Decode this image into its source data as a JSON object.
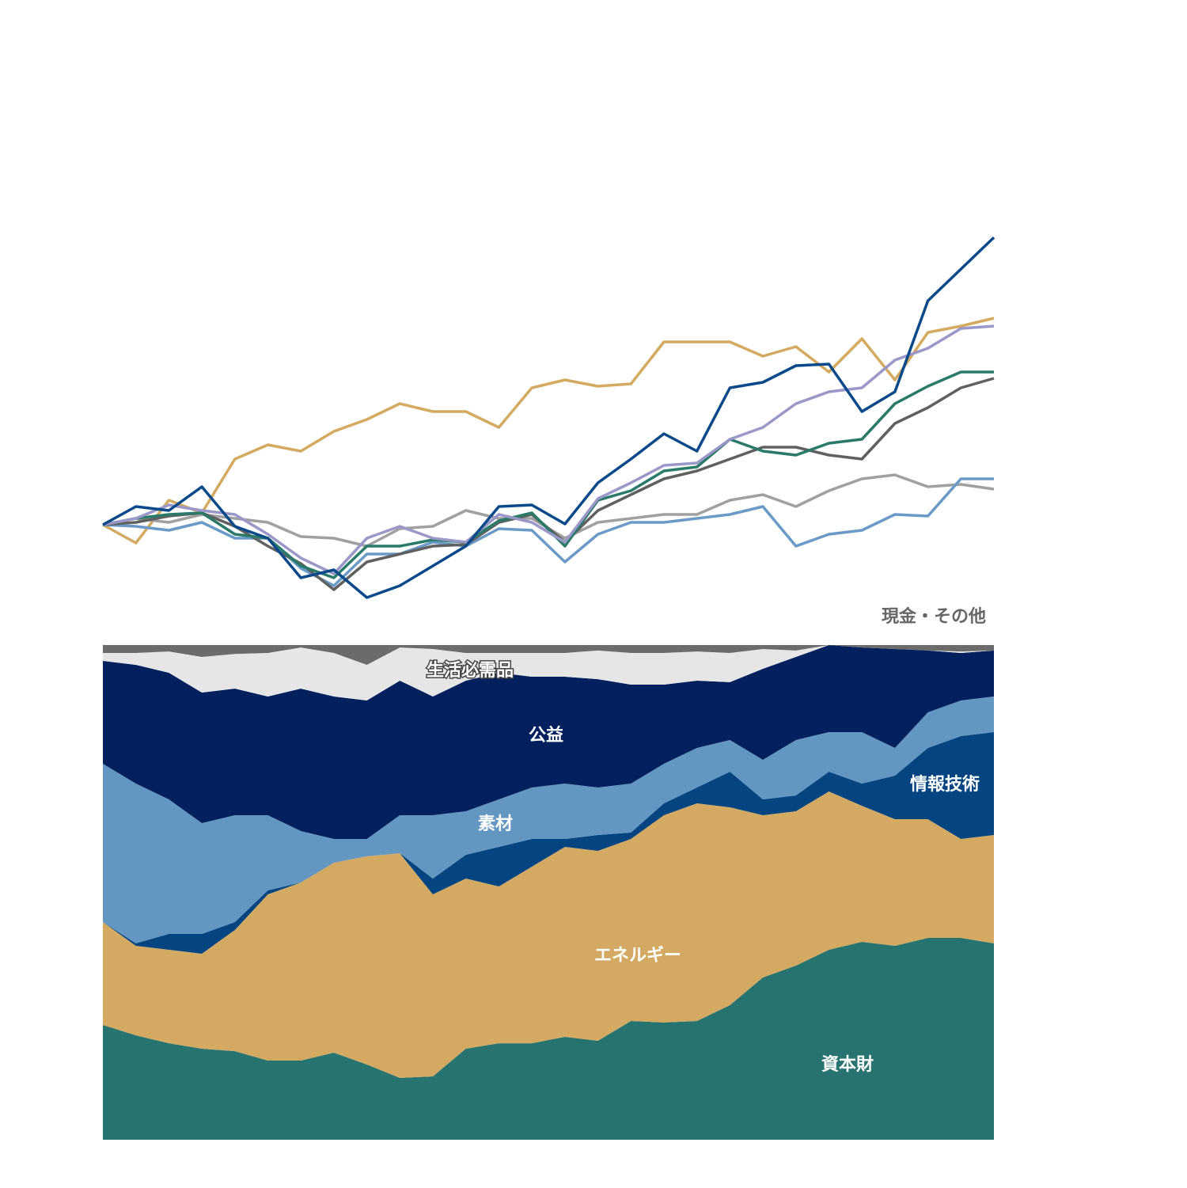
{
  "chart_data": [
    {
      "type": "line",
      "ylim": [
        -25,
        85
      ],
      "series": [
        {
          "color": "#d4aa60",
          "values": [
            0,
            -4.6,
            6.2,
            3,
            16.6,
            20.2,
            18.6,
            23.6,
            26.6,
            30.6,
            28.6,
            28.6,
            24.6,
            34.6,
            36.6,
            35,
            35.6,
            46.2,
            46.2,
            46.2,
            42.6,
            45,
            38.6,
            47,
            36.6,
            48.6,
            50.2,
            52.2
          ]
        },
        {
          "color": "#a0a0a0",
          "values": [
            0,
            1.6,
            0.6,
            2.6,
            1.6,
            0.6,
            -3,
            -3.4,
            -5.4,
            -1,
            -0.4,
            3.6,
            1.6,
            1.6,
            -3.4,
            0.6,
            1.6,
            2.6,
            2.6,
            6.2,
            7.6,
            4.6,
            8.6,
            11.6,
            12.6,
            9.6,
            10.2,
            9
          ]
        },
        {
          "color": "#6a9ac8",
          "values": [
            0,
            -0.4,
            -1.4,
            0.6,
            -3.4,
            -3.4,
            -11,
            -15.4,
            -7.4,
            -7.4,
            -4.4,
            -5.4,
            -1,
            -1.4,
            -9.4,
            -2.4,
            0.6,
            0.6,
            1.6,
            2.6,
            4.6,
            -5.4,
            -2.4,
            -1.4,
            2.6,
            2.2,
            11.6,
            11.6
          ]
        },
        {
          "color": "#606060",
          "values": [
            0,
            0.6,
            2.2,
            3,
            -0.4,
            -5.4,
            -9.8,
            -16.4,
            -9.4,
            -7.4,
            -5.4,
            -5,
            0.6,
            2.6,
            -4.4,
            3.6,
            7.6,
            11.6,
            13.6,
            16.6,
            19.6,
            19.6,
            17.6,
            16.6,
            25.6,
            29.6,
            34.6,
            37
          ]
        },
        {
          "color": "#2a7a6a",
          "values": [
            0,
            1.6,
            2.6,
            3,
            -2.4,
            -3.4,
            -10.4,
            -13.4,
            -5.4,
            -5.4,
            -3.8,
            -4.4,
            1,
            3,
            -5.4,
            6.2,
            8.6,
            13.6,
            14.6,
            21.6,
            18.6,
            17.6,
            20.6,
            21.6,
            30.6,
            35,
            38.6,
            38.6
          ]
        },
        {
          "color": "#9a98c8",
          "values": [
            0,
            1.6,
            5,
            3.6,
            2.6,
            -2.4,
            -8.4,
            -12.4,
            -3.4,
            -0.4,
            -3.4,
            -4.4,
            2.6,
            0.6,
            -4.4,
            6.6,
            10.6,
            15,
            15.6,
            21.6,
            24.6,
            30.6,
            33.6,
            34.6,
            41.6,
            44.6,
            49.6,
            50.2
          ]
        },
        {
          "color": "#0a4a8a",
          "values": [
            0,
            4.6,
            3.6,
            9.6,
            -0.4,
            -3.4,
            -13.4,
            -11.4,
            -18.4,
            -15.4,
            -10.4,
            -5.4,
            4.6,
            5,
            0.2,
            10.6,
            16.6,
            23,
            18.6,
            34.6,
            36,
            40.2,
            40.6,
            28.6,
            33.6,
            56.6,
            64.6,
            72.6
          ]
        }
      ]
    },
    {
      "type": "stacked_area",
      "ylim": [
        0,
        100
      ],
      "series": [
        {
          "name": "資本財",
          "color": "#277370",
          "values": [
            23.2,
            21.1,
            19.5,
            18.4,
            17.9,
            16,
            16,
            17.6,
            15.2,
            12.5,
            12.8,
            18.4,
            19.5,
            19.5,
            20.8,
            20,
            24,
            23.7,
            24,
            27.2,
            32.8,
            35.2,
            38.4,
            40,
            39.2,
            40.8,
            40.8,
            39.7
          ]
        },
        {
          "name": "エネルギー",
          "color": "#d4aa62",
          "values": [
            20.8,
            18.1,
            18.9,
            19.2,
            24.5,
            33.6,
            36,
            38.4,
            42.1,
            45.4,
            36.8,
            34.4,
            31.7,
            35.7,
            38.4,
            38.4,
            36.8,
            41.9,
            44,
            40,
            32.8,
            31.2,
            32,
            27.5,
            25.6,
            24,
            20,
            21.9
          ]
        },
        {
          "name": "情報技術",
          "color": "#034481",
          "values": [
            0,
            0.5,
            3.2,
            4,
            1.6,
            0.8,
            0,
            0,
            0,
            0,
            3.2,
            4.8,
            8,
            5.6,
            1.6,
            3.2,
            1.3,
            2.4,
            3.2,
            7.2,
            3.2,
            3.2,
            4,
            4.5,
            8.8,
            14.4,
            20.8,
            20.8
          ]
        },
        {
          "name": "素材",
          "color": "#6496c2",
          "values": [
            32,
            32.3,
            27.2,
            22.4,
            21.6,
            15.2,
            10.4,
            4.8,
            3.5,
            7.7,
            12.8,
            8.8,
            9.6,
            10.4,
            11.2,
            9.6,
            9.9,
            8,
            8,
            6.4,
            8,
            11.2,
            8,
            10.4,
            5.6,
            7.2,
            7.2,
            7.2
          ]
        },
        {
          "name": "公益",
          "color": "#021f5e",
          "values": [
            20.8,
            24,
            25.6,
            26.4,
            25.6,
            24,
            28.8,
            28.8,
            28,
            27.2,
            24,
            26.4,
            25.6,
            22.4,
            21.6,
            21.9,
            20,
            16,
            13.6,
            11.7,
            18.4,
            16.8,
            17.6,
            17.1,
            20,
            12.5,
            9.6,
            9.3
          ]
        },
        {
          "name": "生活必需品",
          "color": "#e6e6e6",
          "values": [
            1.6,
            2.4,
            4.3,
            7.2,
            7,
            8.8,
            8.3,
            8.8,
            7.2,
            6.7,
            9.6,
            5.6,
            4,
            4.8,
            4.8,
            5.8,
            6.4,
            6.4,
            5.9,
            5.9,
            4,
            1.3,
            0,
            0,
            0,
            0,
            0.3,
            0
          ]
        },
        {
          "name": "現金・その他",
          "color": "#6b6b6b",
          "values": [
            1.6,
            1.6,
            1.3,
            2.4,
            1.8,
            1.6,
            0.5,
            1.6,
            4,
            0.5,
            0.8,
            1.6,
            1.6,
            1.6,
            1.6,
            1.1,
            1.6,
            1.6,
            1.3,
            1.6,
            0.8,
            1.1,
            0,
            0.5,
            0.8,
            1.1,
            1.3,
            1.1
          ]
        }
      ]
    }
  ]
}
